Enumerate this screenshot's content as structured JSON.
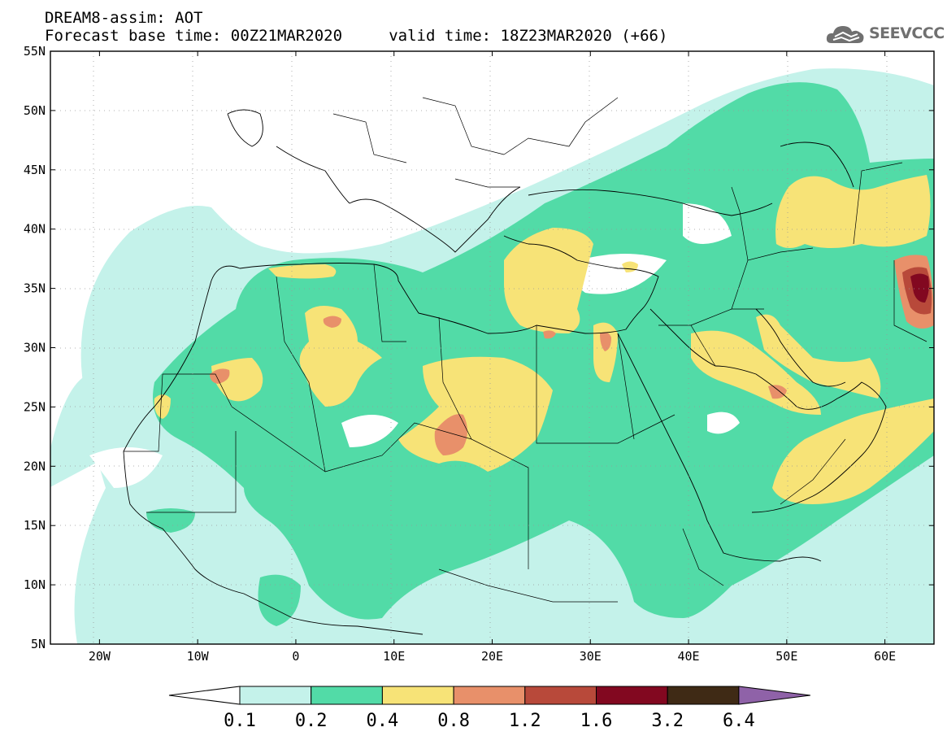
{
  "header": {
    "line1": "DREAM8-assim: AOT",
    "line2": "Forecast base time: 00Z21MAR2020     valid time: 18Z23MAR2020 (+66)"
  },
  "logo": {
    "text": "SEEVCCC",
    "icon": "cloud-icon",
    "color": "#707070"
  },
  "map": {
    "latitude_labels": [
      "55N",
      "50N",
      "45N",
      "40N",
      "35N",
      "30N",
      "25N",
      "20N",
      "15N",
      "10N",
      "5N"
    ],
    "longitude_labels": [
      "20W",
      "10W",
      "0",
      "10E",
      "20E",
      "30E",
      "40E",
      "50E",
      "60E"
    ],
    "extent": {
      "lon": [
        -25,
        65
      ],
      "lat": [
        5,
        55
      ]
    }
  },
  "legend": {
    "labels": [
      "0.1",
      "0.2",
      "0.4",
      "0.8",
      "1.2",
      "1.6",
      "3.2",
      "6.4"
    ],
    "colors": [
      "#ffffff",
      "#c4f2ea",
      "#52dba7",
      "#f7e377",
      "#e8906a",
      "#b8493a",
      "#820820",
      "#3f2a15",
      "#8f62a8"
    ]
  }
}
